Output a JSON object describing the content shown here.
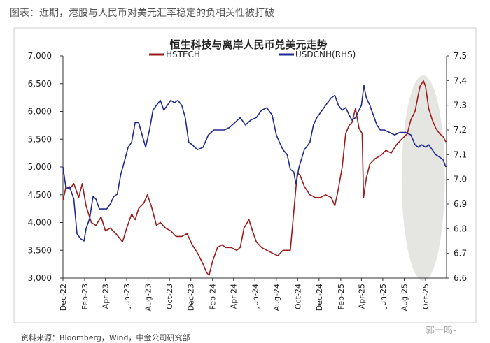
{
  "caption": "图表：近期，港股与人民币对美元汇率稳定的负相关性被打破",
  "source": "资料来源：Bloomberg，Wind，中金公司研究部",
  "watermark": "郭一鸣-",
  "colors": {
    "hstech": "#9b1c1c",
    "usdcnh": "#1e2a8f",
    "highlight": "#dcdcd8"
  },
  "chart_data": {
    "type": "line",
    "title": "恒生科技与离岸人民币兑美元走势",
    "x_range": [
      "2022-12-01",
      "2025-11-30"
    ],
    "x_ticks": [
      "Dec-22",
      "Feb-23",
      "Apr-23",
      "Jun-23",
      "Aug-23",
      "Oct-23",
      "Dec-23",
      "Feb-24",
      "Apr-24",
      "Jun-24",
      "Aug-24",
      "Oct-24",
      "Dec-24",
      "Feb-25",
      "Apr-25",
      "Jun-25",
      "Aug-25",
      "Oct-25"
    ],
    "y_left": {
      "min": 3000,
      "max": 7000,
      "ticks": [
        "3,000",
        "3,500",
        "4,000",
        "4,500",
        "5,000",
        "5,500",
        "6,000",
        "6,500",
        "7,000"
      ]
    },
    "y_right": {
      "label": "RHS",
      "min": 6.6,
      "max": 7.5,
      "ticks": [
        "6.6",
        "6.7",
        "6.8",
        "6.9",
        "7.0",
        "7.1",
        "7.2",
        "7.3",
        "7.4",
        "7.5"
      ]
    },
    "legend": [
      "HSTECH",
      "USDCNH(RHS)"
    ],
    "highlight": {
      "shape": "ellipse",
      "x_from": "2025-07-25",
      "x_to": "2025-11-25"
    },
    "series": [
      {
        "name": "HSTECH",
        "axis": "left",
        "points": [
          [
            "2022-12-01",
            4400
          ],
          [
            "2022-12-10",
            4650
          ],
          [
            "2022-12-20",
            4600
          ],
          [
            "2023-01-01",
            4700
          ],
          [
            "2023-01-15",
            4450
          ],
          [
            "2023-01-25",
            4700
          ],
          [
            "2023-02-05",
            4300
          ],
          [
            "2023-02-20",
            4000
          ],
          [
            "2023-03-05",
            3950
          ],
          [
            "2023-03-20",
            4100
          ],
          [
            "2023-04-01",
            3850
          ],
          [
            "2023-04-15",
            3900
          ],
          [
            "2023-05-01",
            3800
          ],
          [
            "2023-05-20",
            3650
          ],
          [
            "2023-06-01",
            3900
          ],
          [
            "2023-06-15",
            4150
          ],
          [
            "2023-06-25",
            4050
          ],
          [
            "2023-07-05",
            4250
          ],
          [
            "2023-07-20",
            4350
          ],
          [
            "2023-07-30",
            4500
          ],
          [
            "2023-08-10",
            4300
          ],
          [
            "2023-08-25",
            3950
          ],
          [
            "2023-09-05",
            4000
          ],
          [
            "2023-09-20",
            3900
          ],
          [
            "2023-10-05",
            3850
          ],
          [
            "2023-10-20",
            3750
          ],
          [
            "2023-11-05",
            3750
          ],
          [
            "2023-11-20",
            3800
          ],
          [
            "2023-12-05",
            3600
          ],
          [
            "2023-12-20",
            3450
          ],
          [
            "2024-01-05",
            3250
          ],
          [
            "2024-01-15",
            3100
          ],
          [
            "2024-01-22",
            3050
          ],
          [
            "2024-02-01",
            3300
          ],
          [
            "2024-02-15",
            3550
          ],
          [
            "2024-02-28",
            3600
          ],
          [
            "2024-03-10",
            3550
          ],
          [
            "2024-03-25",
            3550
          ],
          [
            "2024-04-10",
            3500
          ],
          [
            "2024-04-20",
            3550
          ],
          [
            "2024-05-01",
            3900
          ],
          [
            "2024-05-15",
            4050
          ],
          [
            "2024-05-25",
            3850
          ],
          [
            "2024-06-05",
            3650
          ],
          [
            "2024-06-20",
            3550
          ],
          [
            "2024-07-05",
            3500
          ],
          [
            "2024-07-20",
            3450
          ],
          [
            "2024-08-05",
            3400
          ],
          [
            "2024-08-20",
            3500
          ],
          [
            "2024-09-10",
            3500
          ],
          [
            "2024-09-20",
            4200
          ],
          [
            "2024-09-30",
            4900
          ],
          [
            "2024-10-08",
            4850
          ],
          [
            "2024-10-20",
            4650
          ],
          [
            "2024-11-05",
            4500
          ],
          [
            "2024-11-20",
            4450
          ],
          [
            "2024-12-05",
            4450
          ],
          [
            "2024-12-20",
            4500
          ],
          [
            "2025-01-05",
            4450
          ],
          [
            "2025-01-15",
            4300
          ],
          [
            "2025-01-25",
            4600
          ],
          [
            "2025-02-05",
            5000
          ],
          [
            "2025-02-15",
            5600
          ],
          [
            "2025-02-25",
            5750
          ],
          [
            "2025-03-05",
            5800
          ],
          [
            "2025-03-15",
            6050
          ],
          [
            "2025-03-25",
            5700
          ],
          [
            "2025-04-03",
            5600
          ],
          [
            "2025-04-07",
            4450
          ],
          [
            "2025-04-15",
            4800
          ],
          [
            "2025-04-25",
            5050
          ],
          [
            "2025-05-10",
            5150
          ],
          [
            "2025-05-25",
            5200
          ],
          [
            "2025-06-10",
            5300
          ],
          [
            "2025-06-25",
            5250
          ],
          [
            "2025-07-10",
            5400
          ],
          [
            "2025-07-25",
            5500
          ],
          [
            "2025-08-10",
            5600
          ],
          [
            "2025-08-20",
            5850
          ],
          [
            "2025-09-01",
            6000
          ],
          [
            "2025-09-15",
            6450
          ],
          [
            "2025-09-25",
            6550
          ],
          [
            "2025-10-01",
            6450
          ],
          [
            "2025-10-10",
            6050
          ],
          [
            "2025-10-20",
            5850
          ],
          [
            "2025-10-30",
            5700
          ],
          [
            "2025-11-10",
            5600
          ],
          [
            "2025-11-20",
            5550
          ],
          [
            "2025-11-28",
            5450
          ]
        ]
      },
      {
        "name": "USDCNH(RHS)",
        "axis": "right",
        "points": [
          [
            "2022-12-01",
            7.05
          ],
          [
            "2022-12-10",
            6.96
          ],
          [
            "2022-12-20",
            6.97
          ],
          [
            "2023-01-01",
            6.92
          ],
          [
            "2023-01-10",
            6.78
          ],
          [
            "2023-01-20",
            6.76
          ],
          [
            "2023-01-30",
            6.75
          ],
          [
            "2023-02-05",
            6.8
          ],
          [
            "2023-02-15",
            6.84
          ],
          [
            "2023-02-25",
            6.93
          ],
          [
            "2023-03-05",
            6.92
          ],
          [
            "2023-03-15",
            6.88
          ],
          [
            "2023-03-25",
            6.88
          ],
          [
            "2023-04-05",
            6.88
          ],
          [
            "2023-04-15",
            6.9
          ],
          [
            "2023-04-25",
            6.93
          ],
          [
            "2023-05-05",
            6.94
          ],
          [
            "2023-05-15",
            7.02
          ],
          [
            "2023-05-25",
            7.07
          ],
          [
            "2023-06-05",
            7.13
          ],
          [
            "2023-06-15",
            7.15
          ],
          [
            "2023-06-25",
            7.23
          ],
          [
            "2023-07-05",
            7.23
          ],
          [
            "2023-07-15",
            7.18
          ],
          [
            "2023-07-25",
            7.13
          ],
          [
            "2023-08-05",
            7.2
          ],
          [
            "2023-08-15",
            7.28
          ],
          [
            "2023-08-25",
            7.3
          ],
          [
            "2023-09-05",
            7.32
          ],
          [
            "2023-09-15",
            7.28
          ],
          [
            "2023-09-25",
            7.3
          ],
          [
            "2023-10-05",
            7.32
          ],
          [
            "2023-10-15",
            7.31
          ],
          [
            "2023-10-25",
            7.32
          ],
          [
            "2023-11-05",
            7.3
          ],
          [
            "2023-11-15",
            7.25
          ],
          [
            "2023-11-25",
            7.15
          ],
          [
            "2023-12-05",
            7.14
          ],
          [
            "2023-12-20",
            7.12
          ],
          [
            "2024-01-05",
            7.13
          ],
          [
            "2024-01-20",
            7.18
          ],
          [
            "2024-02-05",
            7.2
          ],
          [
            "2024-02-20",
            7.2
          ],
          [
            "2024-03-05",
            7.2
          ],
          [
            "2024-03-20",
            7.21
          ],
          [
            "2024-04-05",
            7.23
          ],
          [
            "2024-04-20",
            7.25
          ],
          [
            "2024-05-05",
            7.22
          ],
          [
            "2024-05-20",
            7.24
          ],
          [
            "2024-06-05",
            7.25
          ],
          [
            "2024-06-20",
            7.28
          ],
          [
            "2024-07-05",
            7.29
          ],
          [
            "2024-07-20",
            7.26
          ],
          [
            "2024-08-01",
            7.18
          ],
          [
            "2024-08-10",
            7.15
          ],
          [
            "2024-08-20",
            7.12
          ],
          [
            "2024-09-01",
            7.1
          ],
          [
            "2024-09-10",
            7.04
          ],
          [
            "2024-09-20",
            7.03
          ],
          [
            "2024-09-26",
            6.98
          ],
          [
            "2024-10-05",
            7.05
          ],
          [
            "2024-10-20",
            7.12
          ],
          [
            "2024-11-05",
            7.15
          ],
          [
            "2024-11-15",
            7.22
          ],
          [
            "2024-11-25",
            7.25
          ],
          [
            "2024-12-05",
            7.27
          ],
          [
            "2024-12-20",
            7.3
          ],
          [
            "2025-01-05",
            7.33
          ],
          [
            "2025-01-15",
            7.34
          ],
          [
            "2025-01-25",
            7.3
          ],
          [
            "2025-02-05",
            7.28
          ],
          [
            "2025-02-15",
            7.29
          ],
          [
            "2025-02-25",
            7.26
          ],
          [
            "2025-03-05",
            7.24
          ],
          [
            "2025-03-15",
            7.25
          ],
          [
            "2025-03-25",
            7.28
          ],
          [
            "2025-04-01",
            7.3
          ],
          [
            "2025-04-08",
            7.38
          ],
          [
            "2025-04-15",
            7.33
          ],
          [
            "2025-04-25",
            7.3
          ],
          [
            "2025-05-05",
            7.26
          ],
          [
            "2025-05-15",
            7.22
          ],
          [
            "2025-05-25",
            7.2
          ],
          [
            "2025-06-05",
            7.2
          ],
          [
            "2025-06-20",
            7.19
          ],
          [
            "2025-07-05",
            7.18
          ],
          [
            "2025-07-20",
            7.19
          ],
          [
            "2025-08-05",
            7.19
          ],
          [
            "2025-08-20",
            7.18
          ],
          [
            "2025-09-01",
            7.14
          ],
          [
            "2025-09-10",
            7.13
          ],
          [
            "2025-09-20",
            7.14
          ],
          [
            "2025-10-01",
            7.13
          ],
          [
            "2025-10-10",
            7.14
          ],
          [
            "2025-10-20",
            7.12
          ],
          [
            "2025-10-30",
            7.1
          ],
          [
            "2025-11-10",
            7.09
          ],
          [
            "2025-11-20",
            7.08
          ],
          [
            "2025-11-28",
            7.05
          ]
        ]
      }
    ]
  }
}
